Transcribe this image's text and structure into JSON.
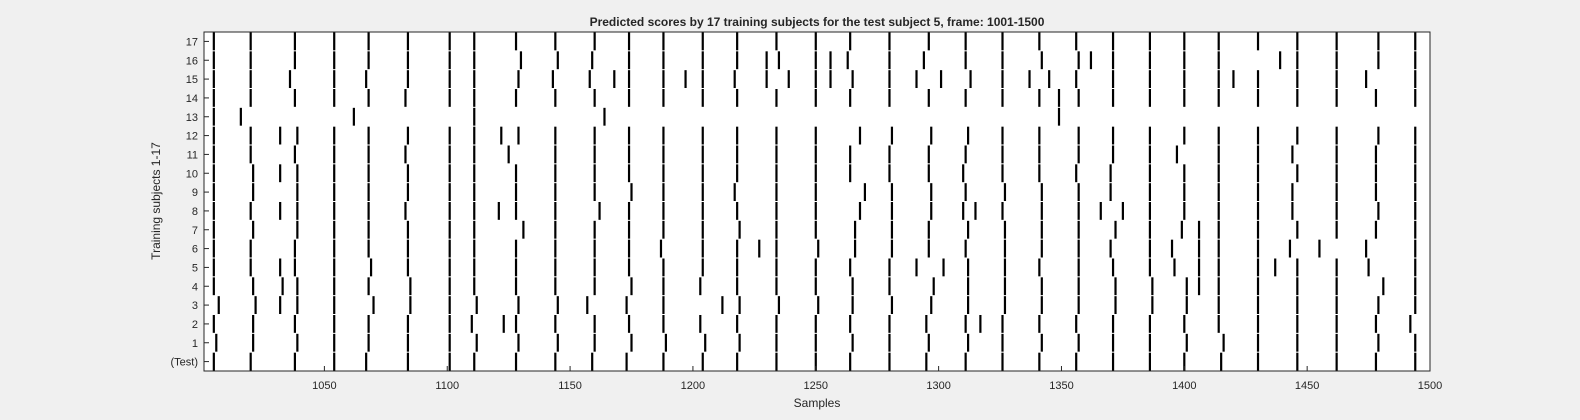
{
  "chart_data": {
    "type": "event-raster",
    "title": "Predicted scores by 17 training subjects for the test subject 5, frame: 1001-1500",
    "xlabel": "Samples",
    "ylabel": "Training subjects 1-17",
    "xlim": [
      1001,
      1500
    ],
    "xticks": [
      1050,
      1100,
      1150,
      1200,
      1250,
      1300,
      1350,
      1400,
      1450,
      1500
    ],
    "ytick_labels": [
      "(Test)",
      "1",
      "2",
      "3",
      "4",
      "5",
      "6",
      "7",
      "8",
      "9",
      "10",
      "11",
      "12",
      "13",
      "14",
      "15",
      "16",
      "17"
    ],
    "mark_color": "#000000",
    "rows": [
      {
        "name": "(Test)",
        "events": [
          1005,
          1020,
          1038,
          1054,
          1067,
          1084,
          1101,
          1111,
          1128,
          1144,
          1159,
          1173,
          1188,
          1204,
          1218,
          1234,
          1250,
          1264,
          1280,
          1295,
          1311,
          1326,
          1341,
          1356,
          1371,
          1386,
          1400,
          1415,
          1430,
          1446,
          1462,
          1478,
          1494
        ]
      },
      {
        "name": "1",
        "events": [
          1006,
          1021,
          1039,
          1054,
          1068,
          1084,
          1101,
          1112,
          1129,
          1145,
          1160,
          1175,
          1189,
          1205,
          1219,
          1234,
          1250,
          1265,
          1280,
          1296,
          1312,
          1326,
          1342,
          1357,
          1371,
          1386,
          1401,
          1416,
          1430,
          1446,
          1462,
          1479,
          1494
        ]
      },
      {
        "name": "2",
        "events": [
          1005,
          1021,
          1038,
          1054,
          1068,
          1084,
          1101,
          1110,
          1123,
          1128,
          1144,
          1160,
          1174,
          1188,
          1203,
          1218,
          1234,
          1250,
          1264,
          1280,
          1295,
          1311,
          1317,
          1326,
          1341,
          1356,
          1371,
          1386,
          1400,
          1414,
          1430,
          1446,
          1462,
          1478,
          1492
        ]
      },
      {
        "name": "3",
        "events": [
          1007,
          1022,
          1032,
          1039,
          1054,
          1070,
          1085,
          1101,
          1112,
          1129,
          1145,
          1157,
          1173,
          1188,
          1212,
          1219,
          1235,
          1251,
          1265,
          1281,
          1297,
          1312,
          1327,
          1342,
          1357,
          1372,
          1387,
          1401,
          1414,
          1430,
          1446,
          1462,
          1479,
          1494
        ]
      },
      {
        "name": "4",
        "events": [
          1005,
          1021,
          1033,
          1039,
          1054,
          1068,
          1085,
          1101,
          1111,
          1128,
          1144,
          1160,
          1175,
          1188,
          1203,
          1218,
          1234,
          1250,
          1265,
          1280,
          1298,
          1312,
          1327,
          1342,
          1357,
          1372,
          1387,
          1401,
          1406,
          1414,
          1430,
          1446,
          1462,
          1481,
          1494
        ]
      },
      {
        "name": "5",
        "events": [
          1005,
          1020,
          1032,
          1038,
          1054,
          1069,
          1084,
          1101,
          1111,
          1128,
          1144,
          1160,
          1174,
          1188,
          1204,
          1218,
          1234,
          1250,
          1264,
          1280,
          1291,
          1302,
          1312,
          1327,
          1341,
          1357,
          1371,
          1386,
          1396,
          1406,
          1414,
          1430,
          1437,
          1446,
          1462,
          1475,
          1494
        ]
      },
      {
        "name": "6",
        "events": [
          1005,
          1020,
          1038,
          1054,
          1068,
          1084,
          1101,
          1111,
          1128,
          1144,
          1160,
          1174,
          1187,
          1204,
          1218,
          1227,
          1234,
          1251,
          1266,
          1281,
          1296,
          1311,
          1327,
          1342,
          1357,
          1370,
          1386,
          1395,
          1406,
          1414,
          1430,
          1443,
          1455,
          1474,
          1494
        ]
      },
      {
        "name": "7",
        "events": [
          1005,
          1021,
          1039,
          1054,
          1068,
          1084,
          1101,
          1111,
          1131,
          1144,
          1160,
          1174,
          1188,
          1204,
          1219,
          1234,
          1250,
          1266,
          1281,
          1296,
          1312,
          1327,
          1342,
          1357,
          1372,
          1386,
          1399,
          1406,
          1414,
          1430,
          1446,
          1462,
          1478,
          1494
        ]
      },
      {
        "name": "8",
        "events": [
          1005,
          1020,
          1032,
          1039,
          1054,
          1068,
          1083,
          1101,
          1111,
          1121,
          1128,
          1144,
          1162,
          1174,
          1188,
          1204,
          1218,
          1234,
          1250,
          1268,
          1281,
          1297,
          1310,
          1315,
          1326,
          1342,
          1357,
          1366,
          1375,
          1386,
          1400,
          1414,
          1430,
          1444,
          1462,
          1479,
          1494
        ]
      },
      {
        "name": "9",
        "events": [
          1005,
          1021,
          1039,
          1054,
          1068,
          1084,
          1101,
          1111,
          1128,
          1144,
          1160,
          1175,
          1188,
          1204,
          1217,
          1234,
          1250,
          1270,
          1281,
          1297,
          1311,
          1327,
          1342,
          1357,
          1370,
          1386,
          1400,
          1414,
          1430,
          1444,
          1462,
          1478,
          1494
        ]
      },
      {
        "name": "10",
        "events": [
          1005,
          1021,
          1032,
          1039,
          1054,
          1068,
          1084,
          1101,
          1111,
          1128,
          1144,
          1160,
          1174,
          1188,
          1204,
          1218,
          1234,
          1250,
          1264,
          1280,
          1296,
          1310,
          1326,
          1341,
          1356,
          1370,
          1386,
          1400,
          1414,
          1430,
          1446,
          1462,
          1478,
          1494
        ]
      },
      {
        "name": "11",
        "events": [
          1005,
          1020,
          1038,
          1054,
          1068,
          1083,
          1101,
          1111,
          1125,
          1144,
          1160,
          1174,
          1188,
          1204,
          1218,
          1234,
          1250,
          1264,
          1280,
          1296,
          1311,
          1326,
          1341,
          1357,
          1371,
          1386,
          1397,
          1414,
          1430,
          1444,
          1462,
          1478,
          1494
        ]
      },
      {
        "name": "12",
        "events": [
          1005,
          1020,
          1032,
          1039,
          1054,
          1068,
          1084,
          1101,
          1111,
          1122,
          1129,
          1144,
          1160,
          1174,
          1188,
          1204,
          1218,
          1234,
          1250,
          1268,
          1281,
          1297,
          1312,
          1326,
          1341,
          1357,
          1371,
          1386,
          1400,
          1414,
          1430,
          1446,
          1462,
          1479,
          1494
        ]
      },
      {
        "name": "13",
        "events": [
          1005,
          1016,
          1062,
          1111,
          1164,
          1349
        ]
      },
      {
        "name": "14",
        "events": [
          1005,
          1020,
          1038,
          1054,
          1068,
          1083,
          1101,
          1111,
          1128,
          1144,
          1160,
          1174,
          1188,
          1204,
          1218,
          1234,
          1250,
          1264,
          1280,
          1296,
          1311,
          1326,
          1341,
          1349,
          1357,
          1371,
          1386,
          1400,
          1414,
          1430,
          1446,
          1462,
          1478,
          1494
        ]
      },
      {
        "name": "15",
        "events": [
          1005,
          1020,
          1036,
          1054,
          1067,
          1084,
          1101,
          1111,
          1129,
          1143,
          1158,
          1168,
          1174,
          1188,
          1197,
          1204,
          1217,
          1230,
          1239,
          1250,
          1256,
          1265,
          1280,
          1291,
          1301,
          1313,
          1326,
          1337,
          1345,
          1356,
          1371,
          1386,
          1400,
          1414,
          1420,
          1430,
          1446,
          1462,
          1474,
          1494
        ]
      },
      {
        "name": "16",
        "events": [
          1005,
          1020,
          1038,
          1054,
          1068,
          1084,
          1101,
          1111,
          1130,
          1145,
          1159,
          1174,
          1188,
          1204,
          1218,
          1230,
          1235,
          1250,
          1256,
          1263,
          1280,
          1294,
          1311,
          1326,
          1342,
          1357,
          1362,
          1371,
          1386,
          1400,
          1414,
          1439,
          1446,
          1462,
          1479,
          1494
        ]
      },
      {
        "name": "17",
        "events": [
          1005,
          1020,
          1038,
          1054,
          1068,
          1084,
          1101,
          1111,
          1128,
          1144,
          1160,
          1174,
          1188,
          1204,
          1218,
          1234,
          1250,
          1264,
          1280,
          1296,
          1311,
          1326,
          1341,
          1356,
          1371,
          1386,
          1400,
          1414,
          1430,
          1446,
          1462,
          1479,
          1494
        ]
      }
    ]
  }
}
